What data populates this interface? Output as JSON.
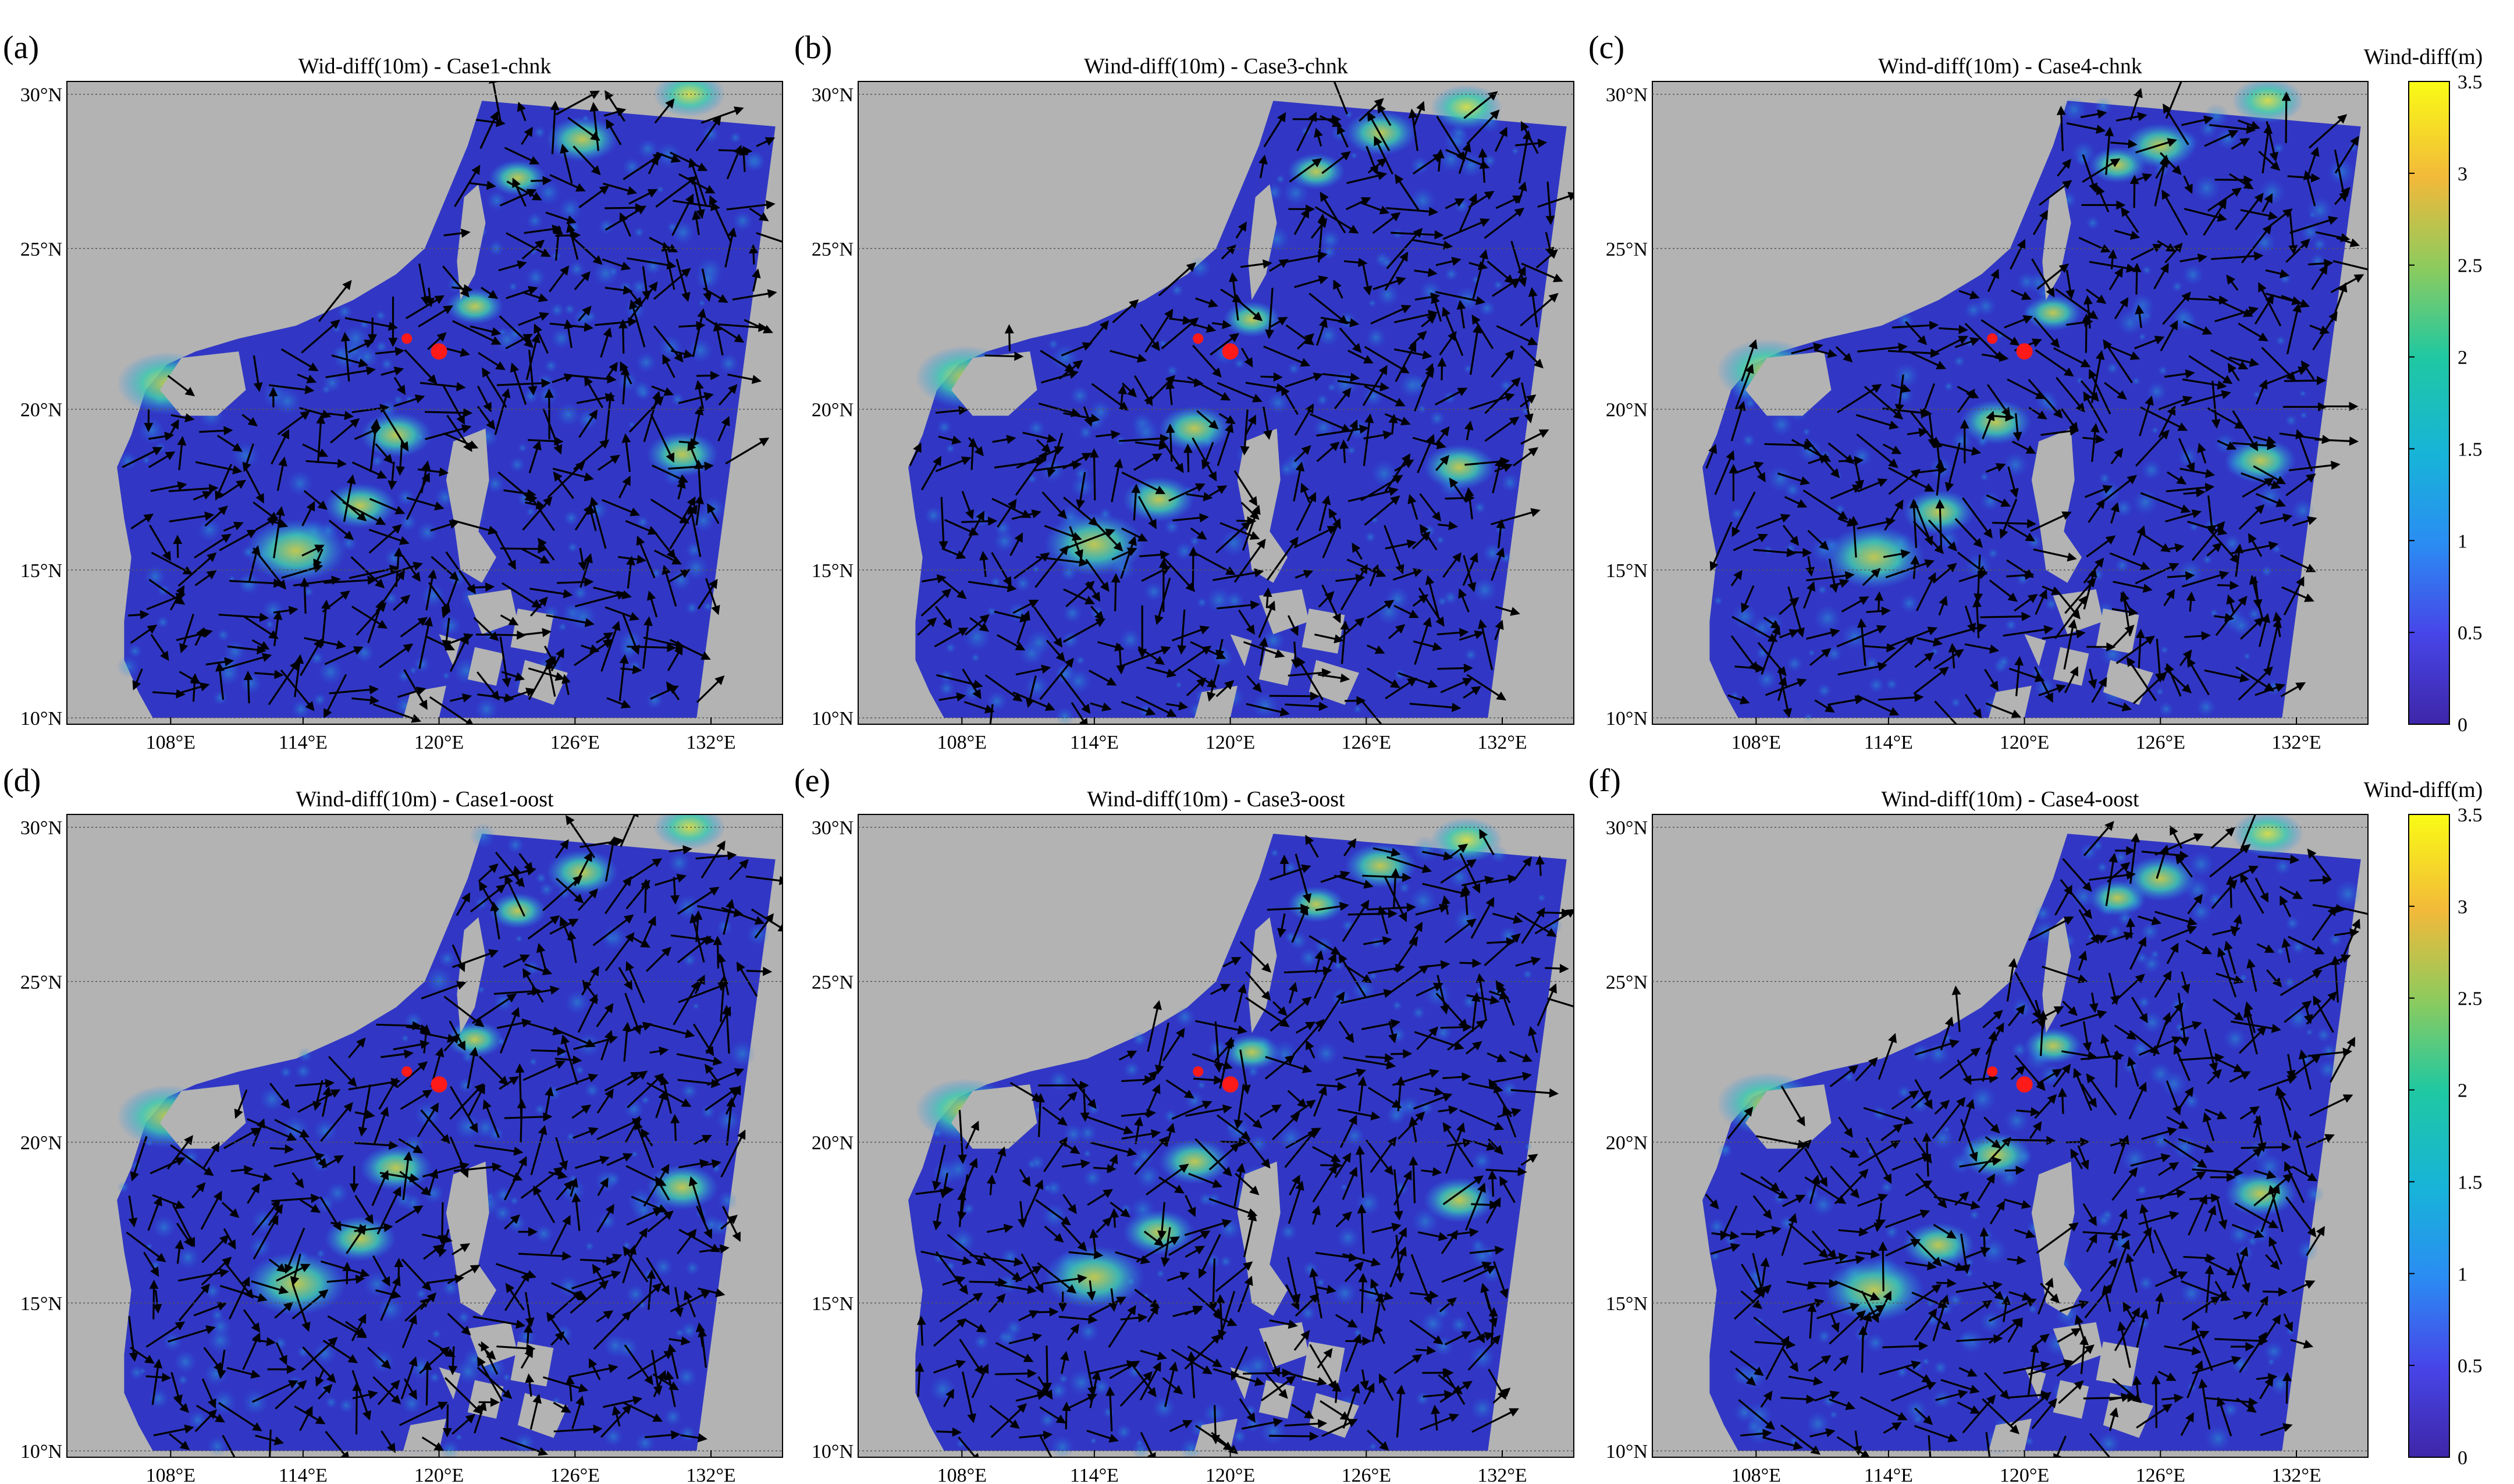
{
  "figure": {
    "panels": [
      {
        "letter": "(a)",
        "title": "Wid-diff(10m) - Case1-chnk"
      },
      {
        "letter": "(b)",
        "title": "Wind-diff(10m) - Case3-chnk"
      },
      {
        "letter": "(c)",
        "title": "Wind-diff(10m) - Case4-chnk"
      },
      {
        "letter": "(d)",
        "title": "Wind-diff(10m) - Case1-oost"
      },
      {
        "letter": "(e)",
        "title": "Wind-diff(10m) - Case3-oost"
      },
      {
        "letter": "(f)",
        "title": "Wind-diff(10m) - Case4-oost"
      }
    ],
    "lat_ticks": [
      "30°N",
      "25°N",
      "20°N",
      "15°N",
      "10°N"
    ],
    "lon_ticks": [
      "108°E",
      "114°E",
      "120°E",
      "126°E",
      "132°E"
    ],
    "colorbar": {
      "title": "Wind-diff(m)",
      "ticks": [
        "3.5",
        "3",
        "2.5",
        "2",
        "1.5",
        "1",
        "0.5",
        "0"
      ],
      "range": [
        0,
        3.5
      ]
    },
    "colors": {
      "land": "#b3b3b3",
      "ocean_base": "#3137c4",
      "marker": "#ff1a1a",
      "arrow": "#000000"
    }
  }
}
